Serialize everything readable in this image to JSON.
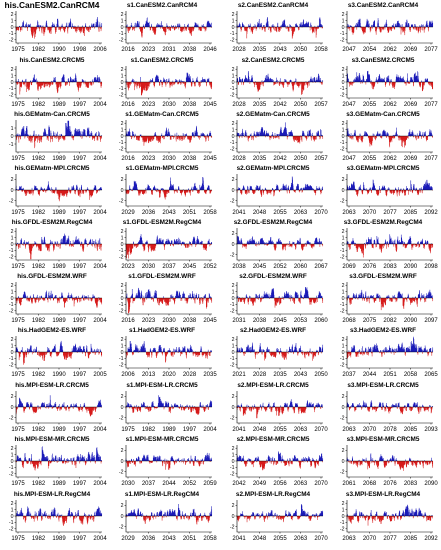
{
  "colors": {
    "positive": "#1a1ab8",
    "negative": "#d61a1a",
    "axis": "#000000"
  },
  "chart_data": [
    {
      "type": "area",
      "title": "his.CanESM2.CanRCM4",
      "xticks": [
        "1975",
        "1982",
        "1990",
        "1998",
        "2006"
      ],
      "yticks": [
        "2",
        "1",
        "0",
        "-1",
        "-2"
      ],
      "ylim": [
        -2.5,
        2.5
      ],
      "seed": 3
    },
    {
      "type": "area",
      "title": "s1.CanESM2.CanRCM4",
      "xticks": [
        "2016",
        "2023",
        "2031",
        "2038",
        "2046"
      ],
      "yticks": [
        "2",
        "1",
        "0",
        "-1",
        "-2"
      ],
      "ylim": [
        -2.5,
        2.5
      ],
      "seed": 7
    },
    {
      "type": "area",
      "title": "s2.CanESM2.CanRCM4",
      "xticks": [
        "2028",
        "2035",
        "2043",
        "2050",
        "2058"
      ],
      "yticks": [
        "2",
        "1",
        "0",
        "-1",
        "-2"
      ],
      "ylim": [
        -2.5,
        2.5
      ],
      "seed": 11
    },
    {
      "type": "area",
      "title": "s3.CanESM2.CanRCM4",
      "xticks": [
        "2047",
        "2054",
        "2062",
        "2069",
        "2077"
      ],
      "yticks": [
        "2",
        "1",
        "0",
        "-1",
        "-2"
      ],
      "ylim": [
        -2.5,
        2.5
      ],
      "seed": 13
    },
    {
      "type": "area",
      "title": "his.CanESM2.CRCM5",
      "xticks": [
        "1975",
        "1982",
        "1989",
        "1997",
        "2004"
      ],
      "yticks": [
        "2",
        "1",
        "0",
        "-1",
        "-2"
      ],
      "ylim": [
        -2.5,
        2.5
      ],
      "seed": 17
    },
    {
      "type": "area",
      "title": "s1.CanESM2.CRCM5",
      "xticks": [
        "2016",
        "2023",
        "2030",
        "2038",
        "2045"
      ],
      "yticks": [
        "2",
        "1",
        "0",
        "-1",
        "-2"
      ],
      "ylim": [
        -2.5,
        2.5
      ],
      "seed": 19
    },
    {
      "type": "area",
      "title": "s2.CanESM2.CRCM5",
      "xticks": [
        "2028",
        "2035",
        "2042",
        "2050",
        "2057"
      ],
      "yticks": [
        "2",
        "1",
        "0",
        "-1",
        "-2"
      ],
      "ylim": [
        -2.5,
        2.5
      ],
      "seed": 23
    },
    {
      "type": "area",
      "title": "s3.CanESM2.CRCM5",
      "xticks": [
        "2047",
        "2055",
        "2062",
        "2069",
        "2077"
      ],
      "yticks": [
        "2",
        "1",
        "0",
        "-1",
        "-2"
      ],
      "ylim": [
        -2.5,
        2.5
      ],
      "seed": 29
    },
    {
      "type": "area",
      "title": "his.GEMatm-Can.CRCM5",
      "xticks": [
        "1975",
        "1982",
        "1989",
        "1997",
        "2004"
      ],
      "yticks": [
        "1",
        "0",
        "-1"
      ],
      "ylim": [
        -2,
        2
      ],
      "seed": 31
    },
    {
      "type": "area",
      "title": "s1.GEMatm-Can.CRCM5",
      "xticks": [
        "2016",
        "2023",
        "2030",
        "2038",
        "2045"
      ],
      "yticks": [
        "2",
        "1",
        "0",
        "-1",
        "-2"
      ],
      "ylim": [
        -2.5,
        2.5
      ],
      "seed": 37
    },
    {
      "type": "area",
      "title": "s2.GEMatm-Can.CRCM5",
      "xticks": [
        "2028",
        "2035",
        "2042",
        "2050",
        "2057"
      ],
      "yticks": [
        "2",
        "1",
        "0",
        "-1",
        "-2"
      ],
      "ylim": [
        -2.5,
        2.5
      ],
      "seed": 41
    },
    {
      "type": "area",
      "title": "s3.GEMatm-Can.CRCM5",
      "xticks": [
        "2047",
        "2055",
        "2062",
        "2069",
        "2077"
      ],
      "yticks": [
        "2",
        "1",
        "0",
        "-1",
        "-2"
      ],
      "ylim": [
        -2.5,
        2.5
      ],
      "seed": 43
    },
    {
      "type": "area",
      "title": "his.GEMatm-MPI.CRCM5",
      "xticks": [
        "1975",
        "1982",
        "1989",
        "1997",
        "2004"
      ],
      "yticks": [
        "2",
        "0",
        "-2"
      ],
      "ylim": [
        -3,
        3
      ],
      "seed": 47
    },
    {
      "type": "area",
      "title": "s1.GEMatm-MPI.CRCM5",
      "xticks": [
        "2029",
        "2036",
        "2043",
        "2051",
        "2058"
      ],
      "yticks": [
        "2",
        "0",
        "-2"
      ],
      "ylim": [
        -3,
        3
      ],
      "seed": 53
    },
    {
      "type": "area",
      "title": "s2.GEMatm-MPI.CRCM5",
      "xticks": [
        "2041",
        "2048",
        "2055",
        "2063",
        "2070"
      ],
      "yticks": [
        "2",
        "0",
        "-2"
      ],
      "ylim": [
        -3,
        3
      ],
      "seed": 59
    },
    {
      "type": "area",
      "title": "s3.GEMatm-MPI.CRCM5",
      "xticks": [
        "2063",
        "2070",
        "2077",
        "2085",
        "2092"
      ],
      "yticks": [
        "2",
        "0",
        "-2"
      ],
      "ylim": [
        -3,
        3
      ],
      "seed": 61
    },
    {
      "type": "area",
      "title": "his.GFDL-ESM2M.RegCM4",
      "xticks": [
        "1975",
        "1982",
        "1989",
        "1997",
        "2004"
      ],
      "yticks": [
        "2",
        "1",
        "0",
        "-1",
        "-2"
      ],
      "ylim": [
        -2.5,
        2.5
      ],
      "seed": 67
    },
    {
      "type": "area",
      "title": "s1.GFDL-ESM2M.RegCM4",
      "xticks": [
        "2023",
        "2030",
        "2037",
        "2045",
        "2052"
      ],
      "yticks": [
        "2",
        "1",
        "0",
        "-1",
        "-2"
      ],
      "ylim": [
        -2.5,
        2.5
      ],
      "seed": 71
    },
    {
      "type": "area",
      "title": "s2.GFDL-ESM2M.RegCM4",
      "xticks": [
        "2038",
        "2045",
        "2052",
        "2060",
        "2067"
      ],
      "yticks": [
        "2",
        "0",
        "-2"
      ],
      "ylim": [
        -3,
        3
      ],
      "seed": 73
    },
    {
      "type": "area",
      "title": "s3.GFDL-ESM2M.RegCM4",
      "xticks": [
        "2069",
        "2076",
        "2083",
        "2090",
        "2098"
      ],
      "yticks": [
        "2",
        "1",
        "0",
        "-1",
        "-2"
      ],
      "ylim": [
        -2.5,
        2.5
      ],
      "seed": 79
    },
    {
      "type": "area",
      "title": "his.GFDL-ESM2M.WRF",
      "xticks": [
        "1975",
        "1982",
        "1989",
        "1997",
        "2004"
      ],
      "yticks": [
        "2",
        "1",
        "0",
        "-1",
        "-2"
      ],
      "ylim": [
        -2.5,
        2.5
      ],
      "seed": 83
    },
    {
      "type": "area",
      "title": "s1.GFDL-ESM2M.WRF",
      "xticks": [
        "2016",
        "2023",
        "2030",
        "2038",
        "2045"
      ],
      "yticks": [
        "2",
        "1",
        "0",
        "-1",
        "-2"
      ],
      "ylim": [
        -2.5,
        2.5
      ],
      "seed": 89
    },
    {
      "type": "area",
      "title": "s2.GFDL-ESM2M.WRF",
      "xticks": [
        "2031",
        "2038",
        "2045",
        "2053",
        "2060"
      ],
      "yticks": [
        "2",
        "1",
        "0",
        "-1",
        "-2"
      ],
      "ylim": [
        -2.5,
        2.5
      ],
      "seed": 97
    },
    {
      "type": "area",
      "title": "s3.GFDL-ESM2M.WRF",
      "xticks": [
        "2068",
        "2075",
        "2082",
        "2090",
        "2097"
      ],
      "yticks": [
        "2",
        "1",
        "0",
        "-1",
        "-2"
      ],
      "ylim": [
        -2.5,
        2.5
      ],
      "seed": 101
    },
    {
      "type": "area",
      "title": "his.HadGEM2-ES.WRF",
      "xticks": [
        "1975",
        "1982",
        "1990",
        "1997",
        "2005"
      ],
      "yticks": [
        "2",
        "1",
        "0",
        "-1",
        "-2"
      ],
      "ylim": [
        -2.5,
        2.5
      ],
      "seed": 103
    },
    {
      "type": "area",
      "title": "s1.HadGEM2-ES.WRF",
      "xticks": [
        "2006",
        "2013",
        "2020",
        "2028",
        "2035"
      ],
      "yticks": [
        "2",
        "1",
        "0",
        "-1",
        "-2"
      ],
      "ylim": [
        -2.5,
        2.5
      ],
      "seed": 107
    },
    {
      "type": "area",
      "title": "s2.HadGEM2-ES.WRF",
      "xticks": [
        "2021",
        "2028",
        "2035",
        "2043",
        "2050"
      ],
      "yticks": [
        "2",
        "1",
        "0",
        "-1",
        "-2"
      ],
      "ylim": [
        -2.5,
        2.5
      ],
      "seed": 109
    },
    {
      "type": "area",
      "title": "s3.HadGEM2-ES.WRF",
      "xticks": [
        "2037",
        "2044",
        "2051",
        "2058",
        "2065"
      ],
      "yticks": [
        "2",
        "1",
        "0",
        "-1",
        "-2"
      ],
      "ylim": [
        -2.5,
        2.5
      ],
      "seed": 113
    },
    {
      "type": "area",
      "title": "his.MPI-ESM-LR.CRCM5",
      "xticks": [
        "1975",
        "1982",
        "1989",
        "1997",
        "2004"
      ],
      "yticks": [
        "2",
        "0",
        "-2"
      ],
      "ylim": [
        -3,
        3
      ],
      "seed": 127
    },
    {
      "type": "area",
      "title": "s1.MPI-ESM-LR.CRCM5",
      "xticks": [
        "1975",
        "1982",
        "1989",
        "1997",
        "2004"
      ],
      "yticks": [
        "2",
        "0",
        "-2"
      ],
      "ylim": [
        -3,
        3
      ],
      "seed": 131
    },
    {
      "type": "area",
      "title": "s2.MPI-ESM-LR.CRCM5",
      "xticks": [
        "2041",
        "2048",
        "2055",
        "2063",
        "2070"
      ],
      "yticks": [
        "2",
        "0",
        "-2"
      ],
      "ylim": [
        -3,
        3
      ],
      "seed": 137
    },
    {
      "type": "area",
      "title": "s3.MPI-ESM-LR.CRCM5",
      "xticks": [
        "2063",
        "2070",
        "2078",
        "2085",
        "2093"
      ],
      "yticks": [
        "2",
        "0",
        "-2"
      ],
      "ylim": [
        -3,
        3
      ],
      "seed": 139
    },
    {
      "type": "area",
      "title": "his.MPI-ESM-MR.CRCM5",
      "xticks": [
        "1975",
        "1982",
        "1989",
        "1997",
        "2004"
      ],
      "yticks": [
        "2",
        "1",
        "0",
        "-1",
        "-2"
      ],
      "ylim": [
        -2.5,
        2.5
      ],
      "seed": 149
    },
    {
      "type": "area",
      "title": "s1.MPI-ESM-MR.CRCM5",
      "xticks": [
        "2030",
        "2037",
        "2044",
        "2052",
        "2059"
      ],
      "yticks": [
        "2",
        "0",
        "-2"
      ],
      "ylim": [
        -3,
        3
      ],
      "seed": 151
    },
    {
      "type": "area",
      "title": "s2.MPI-ESM-MR.CRCM5",
      "xticks": [
        "2042",
        "2049",
        "2056",
        "2063",
        "2070"
      ],
      "yticks": [
        "2",
        "1",
        "0",
        "-1",
        "-2"
      ],
      "ylim": [
        -2.5,
        2.5
      ],
      "seed": 157
    },
    {
      "type": "area",
      "title": "s3.MPI-ESM-MR.CRCM5",
      "xticks": [
        "2061",
        "2068",
        "2076",
        "2083",
        "2090"
      ],
      "yticks": [
        "2",
        "0",
        "-2"
      ],
      "ylim": [
        -3,
        3
      ],
      "seed": 163
    },
    {
      "type": "area",
      "title": "his.MPI-ESM-LR.RegCM4",
      "xticks": [
        "1975",
        "1982",
        "1989",
        "1997",
        "2004"
      ],
      "yticks": [
        "2",
        "1",
        "0",
        "-1",
        "-2"
      ],
      "ylim": [
        -2.5,
        2.5
      ],
      "seed": 167
    },
    {
      "type": "area",
      "title": "s1.MPI-ESM-LR.RegCM4",
      "xticks": [
        "2029",
        "2036",
        "2043",
        "2051",
        "2058"
      ],
      "yticks": [
        "2",
        "0",
        "-2"
      ],
      "ylim": [
        -3,
        3
      ],
      "seed": 173
    },
    {
      "type": "area",
      "title": "s2.MPI-ESM-LR.RegCM4",
      "xticks": [
        "2041",
        "2048",
        "2055",
        "2063",
        "2070"
      ],
      "yticks": [
        "2",
        "0",
        "-2"
      ],
      "ylim": [
        -3,
        3
      ],
      "seed": 179
    },
    {
      "type": "area",
      "title": "s3.MPI-ESM-LR.RegCM4",
      "xticks": [
        "2063",
        "2070",
        "2077",
        "2085",
        "2092"
      ],
      "yticks": [
        "2",
        "1",
        "0",
        "-1",
        "-2"
      ],
      "ylim": [
        -2.5,
        2.5
      ],
      "seed": 181
    }
  ]
}
